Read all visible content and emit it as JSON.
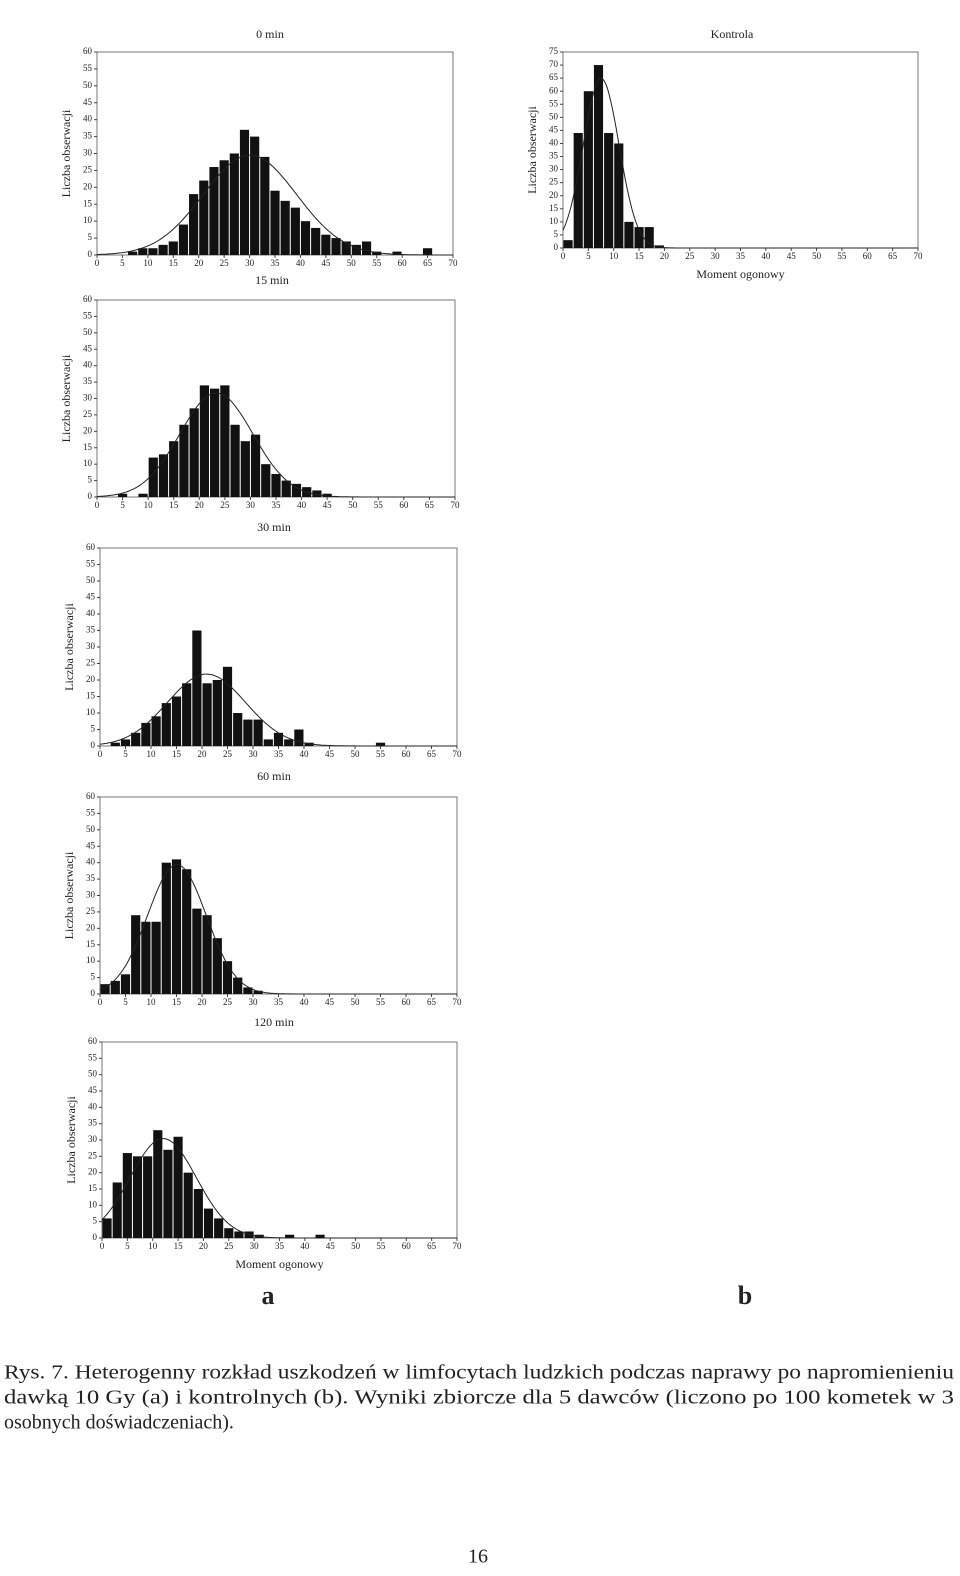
{
  "chart_data": [
    {
      "type": "histogram",
      "title": "0 min",
      "ylabel": "Liczba obserwacji",
      "bins": [
        0,
        2,
        4,
        6,
        8,
        10,
        12,
        14,
        16,
        18,
        20,
        22,
        24,
        26,
        28,
        30,
        32,
        34,
        36,
        38,
        40,
        42,
        44,
        46,
        48,
        50,
        52,
        54,
        56,
        58,
        60,
        62,
        64,
        66,
        68,
        70
      ],
      "values": [
        0,
        0,
        0,
        1,
        2,
        2,
        3,
        4,
        9,
        18,
        22,
        26,
        28,
        30,
        37,
        35,
        29,
        19,
        16,
        14,
        10,
        8,
        6,
        5,
        4,
        3,
        4,
        1,
        0,
        1,
        0,
        0,
        2,
        0,
        0
      ],
      "color": "#111111",
      "xlim": [
        0,
        70
      ],
      "ylim": [
        0,
        60
      ],
      "xticks": [
        0,
        5,
        10,
        15,
        20,
        25,
        30,
        35,
        40,
        45,
        50,
        55,
        60,
        65,
        70
      ],
      "yticks": [
        0,
        5,
        10,
        15,
        20,
        25,
        30,
        35,
        40,
        45,
        50,
        55,
        60
      ]
    },
    {
      "type": "histogram",
      "title": "15 min",
      "ylabel": "Liczba obserwacji",
      "bins": [
        0,
        2,
        4,
        6,
        8,
        10,
        12,
        14,
        16,
        18,
        20,
        22,
        24,
        26,
        28,
        30,
        32,
        34,
        36,
        38,
        40,
        42,
        44,
        46,
        48,
        50,
        52,
        54,
        56,
        58,
        60,
        62,
        64,
        66,
        68,
        70
      ],
      "values": [
        0,
        0,
        1,
        0,
        1,
        12,
        13,
        17,
        22,
        27,
        34,
        33,
        34,
        22,
        17,
        19,
        10,
        7,
        5,
        4,
        3,
        2,
        1,
        0,
        0,
        0,
        0,
        0,
        0,
        0,
        0,
        0,
        0,
        0,
        0
      ],
      "color": "#111111",
      "xlim": [
        0,
        70
      ],
      "ylim": [
        0,
        60
      ],
      "xticks": [
        0,
        5,
        10,
        15,
        20,
        25,
        30,
        35,
        40,
        45,
        50,
        55,
        60,
        65,
        70
      ],
      "yticks": [
        0,
        5,
        10,
        15,
        20,
        25,
        30,
        35,
        40,
        45,
        50,
        55,
        60
      ]
    },
    {
      "type": "histogram",
      "title": "30 min",
      "ylabel": "Liczba obserwacji",
      "bins": [
        0,
        2,
        4,
        6,
        8,
        10,
        12,
        14,
        16,
        18,
        20,
        22,
        24,
        26,
        28,
        30,
        32,
        34,
        36,
        38,
        40,
        42,
        44,
        46,
        48,
        50,
        52,
        54,
        56,
        58,
        60,
        62,
        64,
        66,
        68,
        70
      ],
      "values": [
        0,
        1,
        2,
        4,
        7,
        9,
        13,
        15,
        19,
        35,
        19,
        20,
        24,
        10,
        8,
        8,
        2,
        4,
        2,
        5,
        1,
        0,
        0,
        0,
        0,
        0,
        0,
        1,
        0,
        0,
        0,
        0,
        0,
        0,
        0
      ],
      "color": "#111111",
      "xlim": [
        0,
        70
      ],
      "ylim": [
        0,
        60
      ],
      "xticks": [
        0,
        5,
        10,
        15,
        20,
        25,
        30,
        35,
        40,
        45,
        50,
        55,
        60,
        65,
        70
      ],
      "yticks": [
        0,
        5,
        10,
        15,
        20,
        25,
        30,
        35,
        40,
        45,
        50,
        55,
        60
      ]
    },
    {
      "type": "histogram",
      "title": "60 min",
      "ylabel": "Liczba obserwacji",
      "bins": [
        0,
        2,
        4,
        6,
        8,
        10,
        12,
        14,
        16,
        18,
        20,
        22,
        24,
        26,
        28,
        30,
        32,
        34,
        36,
        38,
        40,
        42,
        44,
        46,
        48,
        50,
        52,
        54,
        56,
        58,
        60,
        62,
        64,
        66,
        68,
        70
      ],
      "values": [
        3,
        4,
        6,
        24,
        22,
        22,
        40,
        41,
        38,
        26,
        24,
        17,
        10,
        5,
        2,
        1,
        0,
        0,
        0,
        0,
        0,
        0,
        0,
        0,
        0,
        0,
        0,
        0,
        0,
        0,
        0,
        0,
        0,
        0,
        0
      ],
      "color": "#111111",
      "xlim": [
        0,
        70
      ],
      "ylim": [
        0,
        60
      ],
      "xticks": [
        0,
        5,
        10,
        15,
        20,
        25,
        30,
        35,
        40,
        45,
        50,
        55,
        60,
        65,
        70
      ],
      "yticks": [
        0,
        5,
        10,
        15,
        20,
        25,
        30,
        35,
        40,
        45,
        50,
        55,
        60
      ]
    },
    {
      "type": "histogram",
      "title": "120 min",
      "ylabel": "Liczba obserwacji",
      "xlabel": "Moment ogonowy",
      "bins": [
        0,
        2,
        4,
        6,
        8,
        10,
        12,
        14,
        16,
        18,
        20,
        22,
        24,
        26,
        28,
        30,
        32,
        34,
        36,
        38,
        40,
        42,
        44,
        46,
        48,
        50,
        52,
        54,
        56,
        58,
        60,
        62,
        64,
        66,
        68,
        70
      ],
      "values": [
        6,
        17,
        26,
        25,
        25,
        33,
        27,
        31,
        20,
        15,
        9,
        6,
        3,
        2,
        2,
        1,
        0,
        0,
        1,
        0,
        0,
        1,
        0,
        0,
        0,
        0,
        0,
        0,
        0,
        0,
        0,
        0,
        0,
        0,
        0
      ],
      "color": "#111111",
      "xlim": [
        0,
        70
      ],
      "ylim": [
        0,
        60
      ],
      "xticks": [
        0,
        5,
        10,
        15,
        20,
        25,
        30,
        35,
        40,
        45,
        50,
        55,
        60,
        65,
        70
      ],
      "yticks": [
        0,
        5,
        10,
        15,
        20,
        25,
        30,
        35,
        40,
        45,
        50,
        55,
        60
      ]
    },
    {
      "type": "histogram",
      "title": "Kontrola",
      "ylabel": "Liczba obserwacji",
      "xlabel": "Moment ogonowy",
      "bins": [
        0,
        2,
        4,
        6,
        8,
        10,
        12,
        14,
        16,
        18,
        20,
        22,
        24,
        26,
        28,
        30,
        32,
        34,
        36,
        38,
        40,
        42,
        44,
        46,
        48,
        50,
        52,
        54,
        56,
        58,
        60,
        62,
        64,
        66,
        68,
        70
      ],
      "values": [
        3,
        44,
        60,
        70,
        44,
        40,
        10,
        8,
        8,
        1,
        0,
        0,
        0,
        0,
        0,
        0,
        0,
        0,
        0,
        0,
        0,
        0,
        0,
        0,
        0,
        0,
        0,
        0,
        0,
        0,
        0,
        0,
        0,
        0,
        0
      ],
      "color": "#111111",
      "xlim": [
        0,
        70
      ],
      "ylim": [
        0,
        75
      ],
      "xticks": [
        0,
        5,
        10,
        15,
        20,
        25,
        30,
        35,
        40,
        45,
        50,
        55,
        60,
        65,
        70
      ],
      "yticks": [
        0,
        5,
        10,
        15,
        20,
        25,
        30,
        35,
        40,
        45,
        50,
        55,
        60,
        65,
        70,
        75
      ]
    }
  ],
  "panel_labels": [
    "a",
    "b"
  ],
  "caption": [
    "Rys. 7. Heterogenny rozkład uszkodzeń w limfocytach ludzkich podczas naprawy po napromienieniu",
    "dawką 10 Gy (a) i kontrolnych (b). Wyniki zbiorcze dla 5 dawców (liczono po 100 kometek w 3",
    "osobnych doświadczeniach)."
  ],
  "page_number": "16"
}
